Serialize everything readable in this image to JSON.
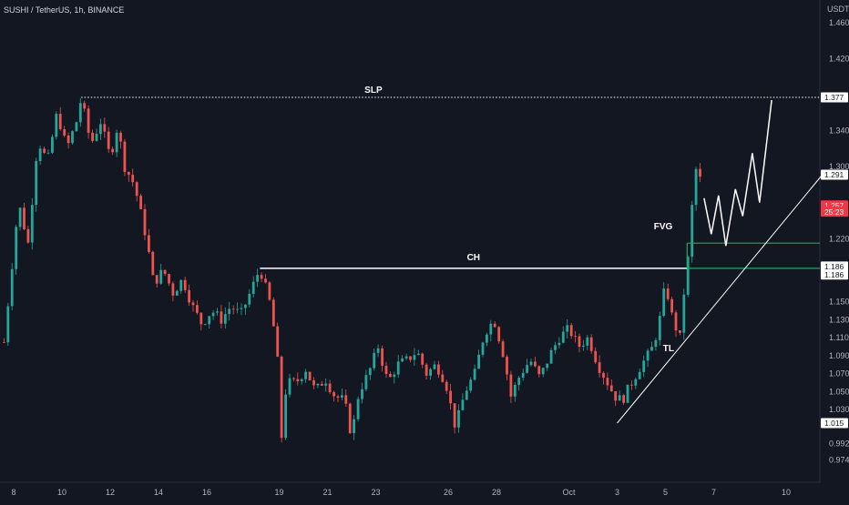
{
  "header": {
    "symbol_line": "SUSHI / TetherUS, 1h, BINANCE"
  },
  "chart_data": {
    "type": "candlestick",
    "currency_label": "USDT",
    "y_ticks": [
      "1.460",
      "1.420",
      "1.377",
      "1.340",
      "1.300",
      "1.291",
      "1.257",
      "1.220",
      "1.186",
      "1.186",
      "1.150",
      "1.130",
      "1.110",
      "1.090",
      "1.070",
      "1.050",
      "1.030",
      "1.015",
      "0.992",
      "0.974"
    ],
    "y_tick_values": [
      1.46,
      1.42,
      null,
      1.34,
      1.3,
      null,
      null,
      1.22,
      null,
      null,
      1.15,
      1.13,
      1.11,
      1.09,
      1.07,
      1.05,
      1.03,
      null,
      0.992,
      0.974
    ],
    "x_ticks": [
      {
        "label": "8",
        "day": 0
      },
      {
        "label": "10",
        "day": 2
      },
      {
        "label": "12",
        "day": 4
      },
      {
        "label": "14",
        "day": 6
      },
      {
        "label": "16",
        "day": 8
      },
      {
        "label": "19",
        "day": 11
      },
      {
        "label": "21",
        "day": 13
      },
      {
        "label": "23",
        "day": 15
      },
      {
        "label": "26",
        "day": 18
      },
      {
        "label": "28",
        "day": 20
      },
      {
        "label": "Oct",
        "day": 23
      },
      {
        "label": "3",
        "day": 25
      },
      {
        "label": "5",
        "day": 27
      },
      {
        "label": "7",
        "day": 29
      },
      {
        "label": "10",
        "day": 32
      }
    ],
    "price_path": [
      [
        -0.4,
        1.105
      ],
      [
        0.2,
        1.26
      ],
      [
        0.6,
        1.215
      ],
      [
        1.0,
        1.33
      ],
      [
        1.4,
        1.305
      ],
      [
        1.8,
        1.36
      ],
      [
        2.2,
        1.32
      ],
      [
        2.6,
        1.35
      ],
      [
        2.8,
        1.376
      ],
      [
        3.2,
        1.325
      ],
      [
        3.6,
        1.35
      ],
      [
        4.0,
        1.31
      ],
      [
        4.3,
        1.345
      ],
      [
        4.6,
        1.3
      ],
      [
        5.0,
        1.28
      ],
      [
        5.5,
        1.22
      ],
      [
        5.8,
        1.17
      ],
      [
        6.2,
        1.185
      ],
      [
        6.6,
        1.16
      ],
      [
        7.0,
        1.175
      ],
      [
        7.4,
        1.145
      ],
      [
        7.8,
        1.125
      ],
      [
        8.2,
        1.14
      ],
      [
        8.6,
        1.13
      ],
      [
        9.0,
        1.145
      ],
      [
        9.4,
        1.135
      ],
      [
        9.8,
        1.16
      ],
      [
        10.2,
        1.187
      ],
      [
        10.6,
        1.15
      ],
      [
        10.9,
        1.1
      ],
      [
        11.1,
        1.0
      ],
      [
        11.3,
        1.06
      ],
      [
        11.7,
        1.06
      ],
      [
        12.1,
        1.075
      ],
      [
        12.5,
        1.05
      ],
      [
        12.9,
        1.065
      ],
      [
        13.3,
        1.045
      ],
      [
        13.7,
        1.04
      ],
      [
        14.0,
        1.0
      ],
      [
        14.3,
        1.05
      ],
      [
        14.7,
        1.07
      ],
      [
        15.1,
        1.1
      ],
      [
        15.5,
        1.06
      ],
      [
        15.9,
        1.08
      ],
      [
        16.3,
        1.085
      ],
      [
        16.7,
        1.095
      ],
      [
        17.1,
        1.07
      ],
      [
        17.5,
        1.08
      ],
      [
        17.9,
        1.06
      ],
      [
        18.3,
        1.01
      ],
      [
        18.7,
        1.05
      ],
      [
        19.1,
        1.07
      ],
      [
        19.5,
        1.115
      ],
      [
        19.9,
        1.13
      ],
      [
        20.3,
        1.09
      ],
      [
        20.6,
        1.045
      ],
      [
        21.0,
        1.07
      ],
      [
        21.4,
        1.085
      ],
      [
        21.8,
        1.065
      ],
      [
        22.2,
        1.09
      ],
      [
        22.6,
        1.11
      ],
      [
        23.0,
        1.12
      ],
      [
        23.4,
        1.1
      ],
      [
        23.8,
        1.11
      ],
      [
        24.2,
        1.08
      ],
      [
        24.6,
        1.06
      ],
      [
        24.9,
        1.045
      ],
      [
        25.2,
        1.04
      ],
      [
        25.6,
        1.06
      ],
      [
        26.0,
        1.08
      ],
      [
        26.4,
        1.095
      ],
      [
        26.7,
        1.12
      ],
      [
        27.0,
        1.17
      ],
      [
        27.3,
        1.13
      ],
      [
        27.6,
        1.11
      ],
      [
        27.8,
        1.17
      ],
      [
        28.0,
        1.21
      ],
      [
        28.2,
        1.3
      ],
      [
        28.4,
        1.29
      ],
      [
        28.6,
        1.265
      ]
    ],
    "projection": [
      [
        28.6,
        1.265
      ],
      [
        28.9,
        1.225
      ],
      [
        29.2,
        1.268
      ],
      [
        29.5,
        1.212
      ],
      [
        29.9,
        1.275
      ],
      [
        30.2,
        1.245
      ],
      [
        30.6,
        1.315
      ],
      [
        30.9,
        1.26
      ],
      [
        31.4,
        1.374
      ]
    ],
    "annotations": {
      "slp": {
        "label": "SLP",
        "price": 1.377,
        "day_start": 2.8,
        "day_end": 33.5
      },
      "ch": {
        "label": "CH",
        "price": 1.187,
        "day_start": 10.2,
        "day_end": 27.9
      },
      "fvg": {
        "label": "FVG",
        "top": 1.215,
        "bottom": 1.187,
        "day_start": 27.9,
        "day_end": 33.5
      },
      "tl": {
        "label": "TL",
        "from": [
          25.0,
          1.015
        ],
        "to": [
          33.5,
          1.291
        ]
      }
    },
    "price_tags": [
      {
        "label": "1.377",
        "price": 1.377,
        "bg": "#ffffff",
        "fg": "#131722"
      },
      {
        "label": "1.291",
        "price": 1.291,
        "bg": "#ffffff",
        "fg": "#131722"
      },
      {
        "label": "1.257",
        "price": 1.257,
        "bg": "#f23645",
        "fg": "#ffffff"
      },
      {
        "label": "25:23",
        "price": 1.25,
        "bg": "#f23645",
        "fg": "#ffffff"
      },
      {
        "label": "1.186",
        "price": 1.189,
        "bg": "#ffffff",
        "fg": "#131722"
      },
      {
        "label": "1.186",
        "price": 1.18,
        "bg": "#ffffff",
        "fg": "#131722"
      },
      {
        "label": "1.015",
        "price": 1.015,
        "bg": "#ffffff",
        "fg": "#131722"
      }
    ],
    "colors": {
      "up": "#26a69a",
      "down": "#ef5350",
      "line": "#ffffff",
      "fvg_line": "#26a65b",
      "background": "#131722"
    }
  }
}
